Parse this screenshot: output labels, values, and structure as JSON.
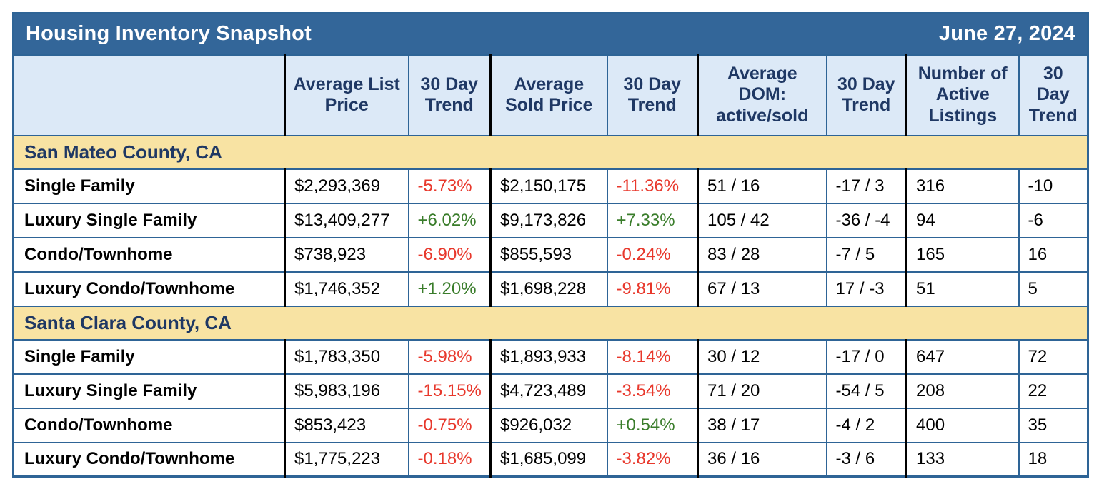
{
  "title": "Housing Inventory Snapshot",
  "date": "June 27, 2024",
  "columns": [
    "Average List Price",
    "30 Day Trend",
    "Average Sold Price",
    "30 Day Trend",
    "Average DOM: active/sold",
    "30 Day Trend",
    "Number of Active Listings",
    "30 Day Trend"
  ],
  "sections": [
    {
      "name": "San Mateo County, CA",
      "rows": [
        {
          "label": "Single Family",
          "avg_list_price": "$2,293,369",
          "list_trend": "-5.73%",
          "avg_sold_price": "$2,150,175",
          "sold_trend": "-11.36%",
          "dom": "51 / 16",
          "dom_trend": "-17 / 3",
          "active_listings": "316",
          "listings_trend": "-10"
        },
        {
          "label": "Luxury Single Family",
          "avg_list_price": "$13,409,277",
          "list_trend": "+6.02%",
          "avg_sold_price": "$9,173,826",
          "sold_trend": "+7.33%",
          "dom": "105 / 42",
          "dom_trend": "-36 / -4",
          "active_listings": "94",
          "listings_trend": "-6"
        },
        {
          "label": "Condo/Townhome",
          "avg_list_price": "$738,923",
          "list_trend": "-6.90%",
          "avg_sold_price": "$855,593",
          "sold_trend": "-0.24%",
          "dom": "83 / 28",
          "dom_trend": "-7 / 5",
          "active_listings": "165",
          "listings_trend": "16"
        },
        {
          "label": "Luxury Condo/Townhome",
          "avg_list_price": "$1,746,352",
          "list_trend": "+1.20%",
          "avg_sold_price": "$1,698,228",
          "sold_trend": "-9.81%",
          "dom": "67 / 13",
          "dom_trend": "17 / -3",
          "active_listings": "51",
          "listings_trend": "5"
        }
      ]
    },
    {
      "name": "Santa Clara County, CA",
      "rows": [
        {
          "label": "Single Family",
          "avg_list_price": "$1,783,350",
          "list_trend": "-5.98%",
          "avg_sold_price": "$1,893,933",
          "sold_trend": "-8.14%",
          "dom": "30 / 12",
          "dom_trend": "-17 / 0",
          "active_listings": "647",
          "listings_trend": "72"
        },
        {
          "label": "Luxury Single Family",
          "avg_list_price": "$5,983,196",
          "list_trend": "-15.15%",
          "avg_sold_price": "$4,723,489",
          "sold_trend": "-3.54%",
          "dom": "71 / 20",
          "dom_trend": "-54 / 5",
          "active_listings": "208",
          "listings_trend": "22"
        },
        {
          "label": "Condo/Townhome",
          "avg_list_price": "$853,423",
          "list_trend": "-0.75%",
          "avg_sold_price": "$926,032",
          "sold_trend": "+0.54%",
          "dom": "38 / 17",
          "dom_trend": "-4 / 2",
          "active_listings": "400",
          "listings_trend": "35"
        },
        {
          "label": "Luxury Condo/Townhome",
          "avg_list_price": "$1,775,223",
          "list_trend": "-0.18%",
          "avg_sold_price": "$1,685,099",
          "sold_trend": "-3.82%",
          "dom": "36 / 16",
          "dom_trend": "-3 / 6",
          "active_listings": "133",
          "listings_trend": "18"
        }
      ]
    }
  ],
  "colors": {
    "title_bar": "#336699",
    "border_blue": "#2E6496",
    "header_background": "#DCE9F7",
    "section_background": "#F8E3A3",
    "heading_text": "#1F3864",
    "negative_trend": "#E8382C",
    "positive_trend": "#3A7D2B"
  }
}
